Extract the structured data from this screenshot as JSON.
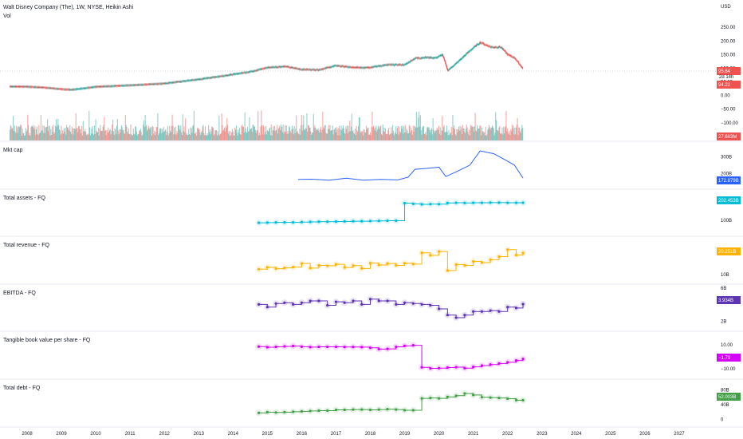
{
  "header": {
    "title": "Walt Disney Company (The), 1W, NYSE, Heikin Ashi",
    "vol_label": "Vol",
    "currency": "USD"
  },
  "colors": {
    "up": "#26a69a",
    "down": "#ef5350",
    "mkt_cap": "#2962ff",
    "total_assets": "#00bcd4",
    "total_revenue": "#ffb300",
    "ebitda": "#5e35b1",
    "tbvps": "#d500f9",
    "total_debt": "#43a047",
    "gridline": "#e0e3eb"
  },
  "x_axis": {
    "labels": [
      "2008",
      "2009",
      "2010",
      "2011",
      "2012",
      "2013",
      "2014",
      "2015",
      "2016",
      "2017",
      "2018",
      "2019",
      "2020",
      "2021",
      "2022",
      "2023",
      "2024",
      "2025",
      "2026",
      "2027"
    ]
  },
  "chart_data": [
    {
      "type": "line",
      "name": "price",
      "title": "Walt Disney Company (The), 1W, NYSE, Heikin Ashi",
      "x": [
        2007.5,
        2008,
        2008.5,
        2009,
        2009.3,
        2009.7,
        2010,
        2011,
        2012,
        2013,
        2014,
        2014.5,
        2015,
        2015.5,
        2016,
        2016.5,
        2017,
        2017.5,
        2018,
        2018.5,
        2019,
        2019.3,
        2019.6,
        2019.9,
        2020.1,
        2020.25,
        2020.5,
        2020.9,
        2021.2,
        2021.5,
        2021.8,
        2022.0,
        2022.2,
        2022.45
      ],
      "values": [
        34,
        33,
        30,
        24,
        22,
        28,
        33,
        38,
        45,
        60,
        78,
        88,
        103,
        107,
        96,
        95,
        110,
        103,
        104,
        113,
        113,
        137,
        140,
        138,
        150,
        92,
        118,
        165,
        195,
        178,
        178,
        150,
        138,
        97
      ],
      "current_price": "95.64",
      "price_tag_2": "94.22",
      "countdown": "2d 14h",
      "y_ticks": [
        "250.00",
        "200.00",
        "150.00",
        "100.00",
        "50.00",
        "0.00",
        "−50.00",
        "−100.00"
      ]
    },
    {
      "type": "bar",
      "name": "Vol",
      "value_tag": "27.683M",
      "note": "weekly volume histogram, colored by candle direction"
    },
    {
      "type": "line",
      "name": "Mkt cap",
      "x": [
        2015.9,
        2016.3,
        2016.8,
        2017.3,
        2017.8,
        2018.3,
        2018.8,
        2019.1,
        2019.3,
        2019.6,
        2020.0,
        2020.2,
        2020.5,
        2020.9,
        2021.2,
        2021.6,
        2021.9,
        2022.2,
        2022.45
      ],
      "values": [
        165,
        166,
        160,
        172,
        160,
        165,
        162,
        178,
        225,
        230,
        238,
        182,
        210,
        250,
        335,
        318,
        285,
        250,
        172.879
      ],
      "value_tag": "172.879B",
      "y_ticks": [
        "300B",
        "200B"
      ]
    },
    {
      "type": "line",
      "step": true,
      "name": "Total assets - FQ",
      "x": [
        2014.75,
        2015,
        2015.25,
        2015.5,
        2015.75,
        2016,
        2016.25,
        2016.5,
        2016.75,
        2017,
        2017.25,
        2017.5,
        2017.75,
        2018,
        2018.25,
        2018.5,
        2018.75,
        2019,
        2019.25,
        2019.5,
        2019.75,
        2020,
        2020.25,
        2020.5,
        2020.75,
        2021,
        2021.25,
        2021.5,
        2021.75,
        2022,
        2022.25,
        2022.45
      ],
      "values": [
        86,
        87,
        88,
        88,
        88,
        90,
        91,
        92,
        92,
        93,
        94,
        95,
        95,
        96,
        97,
        98,
        98,
        200,
        196,
        193,
        194,
        194,
        201,
        202,
        201,
        202,
        202,
        203,
        203,
        202,
        202,
        202.453
      ],
      "value_tag": "202.453B",
      "y_ticks": [
        "100B"
      ]
    },
    {
      "type": "line",
      "step": true,
      "name": "Total revenue - FQ",
      "x": [
        2014.75,
        2015,
        2015.25,
        2015.5,
        2015.75,
        2016,
        2016.25,
        2016.5,
        2016.75,
        2017,
        2017.25,
        2017.5,
        2017.75,
        2018,
        2018.25,
        2018.5,
        2018.75,
        2019,
        2019.25,
        2019.5,
        2019.75,
        2020,
        2020.25,
        2020.5,
        2020.75,
        2021,
        2021.25,
        2021.5,
        2021.75,
        2022,
        2022.25,
        2022.45
      ],
      "values": [
        12.5,
        13.4,
        12.7,
        13.1,
        13.5,
        15.2,
        13.0,
        14.3,
        14.1,
        14.8,
        13.3,
        14.2,
        12.8,
        15.4,
        14.5,
        15.2,
        14.3,
        15.3,
        14.9,
        20.3,
        19.1,
        20.9,
        11.8,
        14.7,
        14.3,
        16.2,
        15.6,
        17.0,
        18.5,
        21.8,
        19.2,
        20.251
      ],
      "value_tag": "20.251B",
      "y_ticks": [
        "10B"
      ]
    },
    {
      "type": "line",
      "step": true,
      "name": "EBITDA - FQ",
      "x": [
        2014.75,
        2015,
        2015.25,
        2015.5,
        2015.75,
        2016,
        2016.25,
        2016.5,
        2016.75,
        2017,
        2017.25,
        2017.5,
        2017.75,
        2018,
        2018.25,
        2018.5,
        2018.75,
        2019,
        2019.25,
        2019.5,
        2019.75,
        2020,
        2020.25,
        2020.5,
        2020.75,
        2021,
        2021.25,
        2021.5,
        2021.75,
        2022,
        2022.25,
        2022.45
      ],
      "values": [
        3.9,
        3.6,
        4.0,
        4.1,
        3.9,
        4.1,
        4.3,
        4.3,
        3.8,
        4.2,
        4.1,
        4.3,
        3.9,
        4.5,
        4.3,
        4.3,
        3.9,
        4.1,
        4.0,
        3.9,
        3.8,
        3.4,
        2.7,
        2.4,
        2.7,
        3.1,
        3.1,
        3.2,
        3.1,
        3.6,
        3.5,
        3.934
      ],
      "value_tag": "3.934B",
      "y_ticks": [
        "6B",
        "2B"
      ]
    },
    {
      "type": "line",
      "step": true,
      "name": "Tangible book value per share - FQ",
      "x": [
        2014.75,
        2015,
        2015.25,
        2015.5,
        2015.75,
        2016,
        2016.25,
        2016.5,
        2016.75,
        2017,
        2017.25,
        2017.5,
        2017.75,
        2018,
        2018.25,
        2018.5,
        2018.75,
        2019,
        2019.25,
        2019.5,
        2019.75,
        2020,
        2020.25,
        2020.5,
        2020.75,
        2021,
        2021.25,
        2021.5,
        2021.75,
        2022,
        2022.25,
        2022.45
      ],
      "values": [
        8.5,
        8.0,
        8.3,
        8.7,
        9.0,
        8.4,
        8.1,
        8.3,
        8.3,
        8.3,
        8.2,
        8.2,
        8.1,
        7.5,
        6.4,
        6.6,
        8.3,
        9.2,
        9.6,
        -8.8,
        -9.7,
        -9.5,
        -9.0,
        -8.7,
        -9.5,
        -8.4,
        -7.3,
        -6.5,
        -5.6,
        -4.6,
        -3.1,
        -1.79
      ],
      "value_tag": "−1.79",
      "y_ticks": [
        "10.00",
        "−10.00"
      ]
    },
    {
      "type": "line",
      "step": true,
      "name": "Total debt - FQ",
      "x": [
        2014.75,
        2015,
        2015.25,
        2015.5,
        2015.75,
        2016,
        2016.25,
        2016.5,
        2016.75,
        2017,
        2017.25,
        2017.5,
        2017.75,
        2018,
        2018.25,
        2018.5,
        2018.75,
        2019,
        2019.25,
        2019.5,
        2019.75,
        2020,
        2020.25,
        2020.5,
        2020.75,
        2021,
        2021.25,
        2021.5,
        2021.75,
        2022,
        2022.25,
        2022.45
      ],
      "values": [
        18,
        20,
        19,
        20,
        21,
        22,
        23,
        24,
        24,
        26,
        26,
        27,
        27,
        26,
        27,
        28,
        27,
        25,
        25,
        57,
        58,
        57,
        61,
        64,
        70,
        66,
        60,
        59,
        58,
        56,
        52,
        52.003
      ],
      "value_tag": "52.003B",
      "y_ticks": [
        "80B",
        "40B",
        "0"
      ]
    }
  ]
}
